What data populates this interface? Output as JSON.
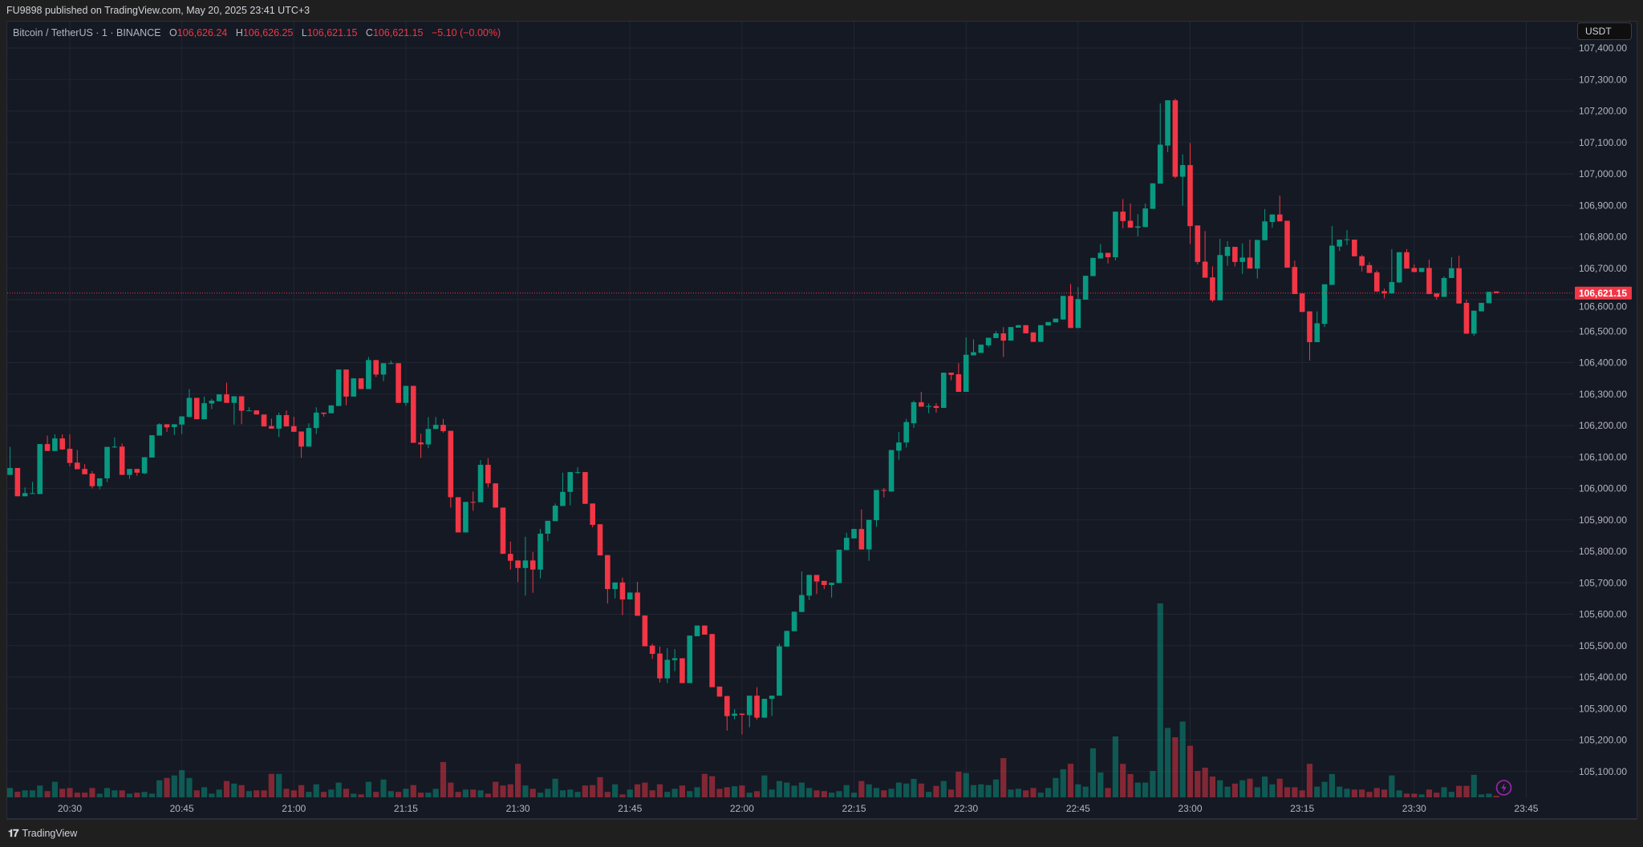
{
  "header": {
    "published": "FU9898 published on TradingView.com, May 20, 2025 23:41 UTC+3"
  },
  "legend": {
    "symbol": "Bitcoin / TetherUS · 1 · BINANCE",
    "o_label": "O",
    "open": "106,626.24",
    "h_label": "H",
    "high": "106,626.25",
    "l_label": "L",
    "low": "106,621.15",
    "c_label": "C",
    "close": "106,621.15",
    "change": "−5.10 (−0.00%)"
  },
  "currency_button": "USDT",
  "footer": {
    "brand": "TradingView"
  },
  "colors": {
    "up": "#089981",
    "down": "#f23645",
    "background": "#151924",
    "grid": "#222632",
    "alert": "#9c27b0"
  },
  "icons": {
    "alert": "lightning-bolt-icon",
    "logo": "tradingview-logo"
  },
  "chart_data": {
    "type": "candlestick",
    "symbol": "BTCUSDT",
    "interval_minutes": 1,
    "first_candle_time": "20:22",
    "last_price": 106621.15,
    "last_price_label": "106,621.15",
    "ylim": [
      105050,
      107420
    ],
    "y_ticks": [
      "107,400.00",
      "107,300.00",
      "107,200.00",
      "107,100.00",
      "107,000.00",
      "106,900.00",
      "106,800.00",
      "106,700.00",
      "106,600.00",
      "106,500.00",
      "106,400.00",
      "106,300.00",
      "106,200.00",
      "106,100.00",
      "106,000.00",
      "105,900.00",
      "105,800.00",
      "105,700.00",
      "105,600.00",
      "105,500.00",
      "105,400.00",
      "105,300.00",
      "105,200.00",
      "105,100.00"
    ],
    "x_ticks": [
      "20:30",
      "20:45",
      "21:00",
      "21:15",
      "21:30",
      "21:45",
      "22:00",
      "22:15",
      "22:30",
      "22:45",
      "23:00",
      "23:15",
      "23:30",
      "23:45"
    ],
    "grid": true,
    "ohlc": [
      [
        106043,
        106132,
        106043,
        106065
      ],
      [
        106065,
        106065,
        105975,
        105975
      ],
      [
        105975,
        106003,
        105975,
        105985
      ],
      [
        105984,
        106021,
        105982,
        105985
      ],
      [
        105982,
        106141,
        105982,
        106141
      ],
      [
        106141,
        106168,
        106119,
        106119
      ],
      [
        106119,
        106172,
        106119,
        106159
      ],
      [
        106159,
        106172,
        106122,
        106124
      ],
      [
        106126,
        106172,
        106070,
        106081
      ],
      [
        106082,
        106122,
        106061,
        106061
      ],
      [
        106062,
        106077,
        106045,
        106045
      ],
      [
        106047,
        106055,
        106000,
        106007
      ],
      [
        106007,
        106032,
        105997,
        106032
      ],
      [
        106032,
        106132,
        106020,
        106132
      ],
      [
        106131,
        106162,
        106128,
        106133
      ],
      [
        106133,
        106143,
        106043,
        106043
      ],
      [
        106043,
        106062,
        106030,
        106062
      ],
      [
        106062,
        106062,
        106040,
        106050
      ],
      [
        106048,
        106099,
        106045,
        106099
      ],
      [
        106098,
        106169,
        106098,
        106169
      ],
      [
        106168,
        106207,
        106168,
        106204
      ],
      [
        106204,
        106204,
        106180,
        106194
      ],
      [
        106195,
        106204,
        106170,
        106204
      ],
      [
        106203,
        106229,
        106173,
        106229
      ],
      [
        106227,
        106316,
        106227,
        106288
      ],
      [
        106288,
        106288,
        106220,
        106220
      ],
      [
        106220,
        106292,
        106220,
        106271
      ],
      [
        106270,
        106285,
        106252,
        106279
      ],
      [
        106277,
        106299,
        106277,
        106299
      ],
      [
        106299,
        106336,
        106272,
        106272
      ],
      [
        106272,
        106293,
        106203,
        106293
      ],
      [
        106293,
        106293,
        106204,
        106247
      ],
      [
        106247,
        106258,
        106247,
        106248
      ],
      [
        106248,
        106248,
        106235,
        106235
      ],
      [
        106235,
        106235,
        106197,
        106197
      ],
      [
        106198,
        106222,
        106190,
        106190
      ],
      [
        106190,
        106241,
        106163,
        106233
      ],
      [
        106233,
        106248,
        106197,
        106197
      ],
      [
        106198,
        106228,
        106180,
        106180
      ],
      [
        106181,
        106181,
        106097,
        106133
      ],
      [
        106133,
        106207,
        106133,
        106192
      ],
      [
        106192,
        106258,
        106173,
        106241
      ],
      [
        106241,
        106241,
        106228,
        106237
      ],
      [
        106239,
        106264,
        106239,
        106264
      ],
      [
        106262,
        106378,
        106262,
        106378
      ],
      [
        106378,
        106378,
        106264,
        106292
      ],
      [
        106292,
        106350,
        106292,
        106350
      ],
      [
        106350,
        106350,
        106316,
        106316
      ],
      [
        106316,
        106418,
        106316,
        106408
      ],
      [
        106408,
        106408,
        106354,
        106362
      ],
      [
        106362,
        106398,
        106341,
        106398
      ],
      [
        106397,
        106406,
        106397,
        106398
      ],
      [
        106398,
        106398,
        106272,
        106272
      ],
      [
        106272,
        106326,
        106262,
        106326
      ],
      [
        106326,
        106326,
        106145,
        106145
      ],
      [
        106146,
        106174,
        106097,
        106140
      ],
      [
        106140,
        106227,
        106128,
        106189
      ],
      [
        106189,
        106227,
        106189,
        106202
      ],
      [
        106202,
        106221,
        106177,
        106182
      ],
      [
        106183,
        106183,
        105939,
        105972
      ],
      [
        105972,
        105972,
        105860,
        105860
      ],
      [
        105860,
        105957,
        105860,
        105957
      ],
      [
        105957,
        105990,
        105929,
        105956
      ],
      [
        105956,
        106090,
        105956,
        106075
      ],
      [
        106075,
        106096,
        106003,
        106016
      ],
      [
        106016,
        106016,
        105939,
        105939
      ],
      [
        105939,
        105939,
        105792,
        105792
      ],
      [
        105792,
        105831,
        105742,
        105770
      ],
      [
        105771,
        105771,
        105702,
        105747
      ],
      [
        105747,
        105846,
        105659,
        105771
      ],
      [
        105771,
        105798,
        105668,
        105742
      ],
      [
        105742,
        105871,
        105714,
        105856
      ],
      [
        105856,
        105897,
        105832,
        105897
      ],
      [
        105896,
        105952,
        105896,
        105945
      ],
      [
        105944,
        106050,
        105944,
        105989
      ],
      [
        105989,
        106052,
        105946,
        106052
      ],
      [
        106051,
        106067,
        106046,
        106052
      ],
      [
        106052,
        106052,
        105951,
        105951
      ],
      [
        105952,
        105952,
        105876,
        105884
      ],
      [
        105886,
        105886,
        105787,
        105787
      ],
      [
        105788,
        105788,
        105634,
        105680
      ],
      [
        105680,
        105701,
        105650,
        105701
      ],
      [
        105701,
        105716,
        105597,
        105647
      ],
      [
        105647,
        105669,
        105647,
        105669
      ],
      [
        105669,
        105703,
        105595,
        105595
      ],
      [
        105596,
        105596,
        105498,
        105498
      ],
      [
        105500,
        105506,
        105458,
        105474
      ],
      [
        105475,
        105497,
        105383,
        105396
      ],
      [
        105396,
        105492,
        105381,
        105455
      ],
      [
        105454,
        105489,
        105419,
        105460
      ],
      [
        105460,
        105460,
        105381,
        105381
      ],
      [
        105381,
        105532,
        105381,
        105532
      ],
      [
        105530,
        105564,
        105530,
        105564
      ],
      [
        105564,
        105564,
        105535,
        105535
      ],
      [
        105537,
        105537,
        105368,
        105368
      ],
      [
        105370,
        105370,
        105338,
        105338
      ],
      [
        105340,
        105340,
        105230,
        105276
      ],
      [
        105277,
        105298,
        105266,
        105284
      ],
      [
        105284,
        105284,
        105218,
        105280
      ],
      [
        105279,
        105341,
        105241,
        105341
      ],
      [
        105341,
        105368,
        105265,
        105271
      ],
      [
        105271,
        105331,
        105271,
        105331
      ],
      [
        105331,
        105341,
        105276,
        105341
      ],
      [
        105341,
        105506,
        105341,
        105498
      ],
      [
        105497,
        105547,
        105497,
        105547
      ],
      [
        105546,
        105608,
        105546,
        105608
      ],
      [
        105607,
        105736,
        105607,
        105661
      ],
      [
        105659,
        105725,
        105645,
        105725
      ],
      [
        105725,
        105725,
        105664,
        105704
      ],
      [
        105706,
        105706,
        105680,
        105693
      ],
      [
        105693,
        105700,
        105653,
        105700
      ],
      [
        105699,
        105805,
        105699,
        105805
      ],
      [
        105804,
        105859,
        105804,
        105843
      ],
      [
        105841,
        105871,
        105841,
        105871
      ],
      [
        105871,
        105933,
        105806,
        105806
      ],
      [
        105806,
        105900,
        105770,
        105900
      ],
      [
        105899,
        105995,
        105878,
        105995
      ],
      [
        105995,
        106001,
        105971,
        105993
      ],
      [
        105990,
        106122,
        105990,
        106122
      ],
      [
        106120,
        106179,
        106091,
        106146
      ],
      [
        106146,
        106221,
        106130,
        106211
      ],
      [
        106207,
        106279,
        106192,
        106274
      ],
      [
        106274,
        106307,
        106260,
        106260
      ],
      [
        106260,
        106270,
        106239,
        106262
      ],
      [
        106262,
        106271,
        106241,
        106256
      ],
      [
        106256,
        106368,
        106256,
        106368
      ],
      [
        106368,
        106368,
        106344,
        106361
      ],
      [
        106363,
        106398,
        106307,
        106307
      ],
      [
        106307,
        106480,
        106307,
        106425
      ],
      [
        106423,
        106474,
        106423,
        106433
      ],
      [
        106431,
        106457,
        106431,
        106457
      ],
      [
        106455,
        106479,
        106449,
        106479
      ],
      [
        106478,
        106500,
        106478,
        106493
      ],
      [
        106493,
        106513,
        106418,
        106470
      ],
      [
        106470,
        106513,
        106470,
        106513
      ],
      [
        106511,
        106519,
        106511,
        106519
      ],
      [
        106519,
        106519,
        106493,
        106493
      ],
      [
        106496,
        106496,
        106466,
        106466
      ],
      [
        106466,
        106519,
        106466,
        106519
      ],
      [
        106518,
        106529,
        106518,
        106529
      ],
      [
        106528,
        106540,
        106528,
        106540
      ],
      [
        106537,
        106612,
        106537,
        106612
      ],
      [
        106612,
        106650,
        106510,
        106510
      ],
      [
        106510,
        106640,
        106510,
        106602
      ],
      [
        106600,
        106676,
        106600,
        106676
      ],
      [
        106675,
        106733,
        106675,
        106733
      ],
      [
        106731,
        106777,
        106731,
        106749
      ],
      [
        106749,
        106749,
        106715,
        106735
      ],
      [
        106735,
        106880,
        106725,
        106880
      ],
      [
        106880,
        106920,
        106827,
        106850
      ],
      [
        106851,
        106906,
        106829,
        106829
      ],
      [
        106829,
        106872,
        106801,
        106833
      ],
      [
        106831,
        106906,
        106831,
        106890
      ],
      [
        106889,
        106970,
        106889,
        106970
      ],
      [
        106969,
        107224,
        106969,
        107093
      ],
      [
        107090,
        107234,
        107069,
        107234
      ],
      [
        107234,
        107239,
        106986,
        106991
      ],
      [
        106991,
        107062,
        106899,
        107028
      ],
      [
        107028,
        107098,
        106777,
        106834
      ],
      [
        106836,
        106836,
        106712,
        106720
      ],
      [
        106721,
        106818,
        106670,
        106670
      ],
      [
        106671,
        106706,
        106592,
        106598
      ],
      [
        106598,
        106793,
        106598,
        106742
      ],
      [
        106739,
        106786,
        106708,
        106768
      ],
      [
        106768,
        106768,
        106706,
        106720
      ],
      [
        106720,
        106779,
        106682,
        106734
      ],
      [
        106734,
        106791,
        106699,
        106699
      ],
      [
        106699,
        106790,
        106667,
        106790
      ],
      [
        106789,
        106888,
        106789,
        106849
      ],
      [
        106847,
        106871,
        106829,
        106871
      ],
      [
        106871,
        106931,
        106849,
        106849
      ],
      [
        106851,
        106851,
        106702,
        106702
      ],
      [
        106704,
        106724,
        106618,
        106618
      ],
      [
        106620,
        106620,
        106561,
        106561
      ],
      [
        106563,
        106563,
        106407,
        106465
      ],
      [
        106465,
        106563,
        106465,
        106525
      ],
      [
        106523,
        106649,
        106513,
        106649
      ],
      [
        106647,
        106834,
        106647,
        106772
      ],
      [
        106769,
        106791,
        106755,
        106791
      ],
      [
        106791,
        106821,
        106774,
        106792
      ],
      [
        106791,
        106791,
        106738,
        106738
      ],
      [
        106738,
        106742,
        106690,
        106708
      ],
      [
        106710,
        106719,
        106685,
        106685
      ],
      [
        106687,
        106693,
        106626,
        106626
      ],
      [
        106627,
        106635,
        106604,
        106620
      ],
      [
        106620,
        106761,
        106620,
        106656
      ],
      [
        106655,
        106751,
        106653,
        106751
      ],
      [
        106751,
        106761,
        106699,
        106699
      ],
      [
        106701,
        106712,
        106688,
        106688
      ],
      [
        106688,
        106701,
        106688,
        106701
      ],
      [
        106701,
        106727,
        106618,
        106618
      ],
      [
        106620,
        106620,
        106600,
        106609
      ],
      [
        106609,
        106674,
        106609,
        106669
      ],
      [
        106669,
        106735,
        106669,
        106700
      ],
      [
        106700,
        106740,
        106588,
        106588
      ],
      [
        106590,
        106600,
        106492,
        106492
      ],
      [
        106492,
        106565,
        106485,
        106565
      ],
      [
        106563,
        106590,
        106563,
        106590
      ],
      [
        106589,
        106625,
        106589,
        106625
      ],
      [
        106626.24,
        106626.25,
        106621.15,
        106621.15
      ]
    ],
    "volume_pct_of_max": [
      4.8,
      2.9,
      3.6,
      3.6,
      6.1,
      3.2,
      8,
      4.4,
      4.8,
      2.4,
      2.4,
      4.8,
      1.9,
      4.8,
      3.6,
      3.6,
      1.9,
      2.4,
      2.8,
      1.9,
      8.8,
      10,
      11.3,
      14,
      10,
      3.6,
      5.2,
      1.9,
      4,
      8.4,
      7.1,
      6.3,
      3.2,
      3.6,
      3.6,
      12.1,
      12.1,
      4.4,
      3.6,
      6.3,
      2.8,
      6.7,
      2.8,
      4,
      7.6,
      4.4,
      1.9,
      1.5,
      8,
      2.8,
      9.2,
      3.2,
      2.8,
      4.4,
      6.3,
      2.4,
      2.4,
      4.4,
      18.2,
      7.6,
      2.8,
      4,
      4,
      3.6,
      1.9,
      8,
      6.1,
      6.7,
      17.3,
      6.1,
      4.4,
      2.4,
      4.4,
      9.6,
      3.6,
      4,
      2.8,
      6.1,
      6.3,
      10.4,
      2.8,
      6.7,
      1.5,
      4,
      6.7,
      7.6,
      3.6,
      6.7,
      2.8,
      4.4,
      6.1,
      3.2,
      5.2,
      12.1,
      10.9,
      4.4,
      5.2,
      5.7,
      6.1,
      2.4,
      3.2,
      11.3,
      4,
      8.4,
      7.6,
      6,
      7.6,
      4.8,
      3.6,
      3.2,
      2.4,
      3.2,
      6.3,
      2.4,
      8.4,
      6.7,
      4.8,
      3.6,
      4.4,
      7.6,
      7.1,
      9.5,
      7.1,
      2.8,
      5.9,
      8.4,
      4,
      13.2,
      12.5,
      6.3,
      6.7,
      6.3,
      9.2,
      20.2,
      4,
      4.4,
      3.6,
      4.8,
      2.4,
      4.8,
      10,
      14.5,
      17.3,
      6.7,
      5.5,
      25.3,
      12.8,
      4.8,
      31.4,
      17.3,
      12,
      7.6,
      7.6,
      13.6,
      100,
      35.8,
      31,
      39.1,
      26.6,
      13.6,
      15.3,
      10.7,
      8.8,
      5.5,
      7.1,
      8.8,
      9.6,
      5.2,
      10.7,
      6.7,
      9.6,
      5.2,
      5.2,
      3.6,
      17.3,
      5.5,
      8,
      12,
      5.5,
      4.4,
      4,
      4,
      2.8,
      4.8,
      4,
      11.3,
      3.6,
      1.9,
      1.9,
      1.5,
      4,
      2.4,
      5.2,
      2.8,
      5.9,
      5.9,
      11.6,
      1.5,
      1.9,
      0.8
    ]
  }
}
